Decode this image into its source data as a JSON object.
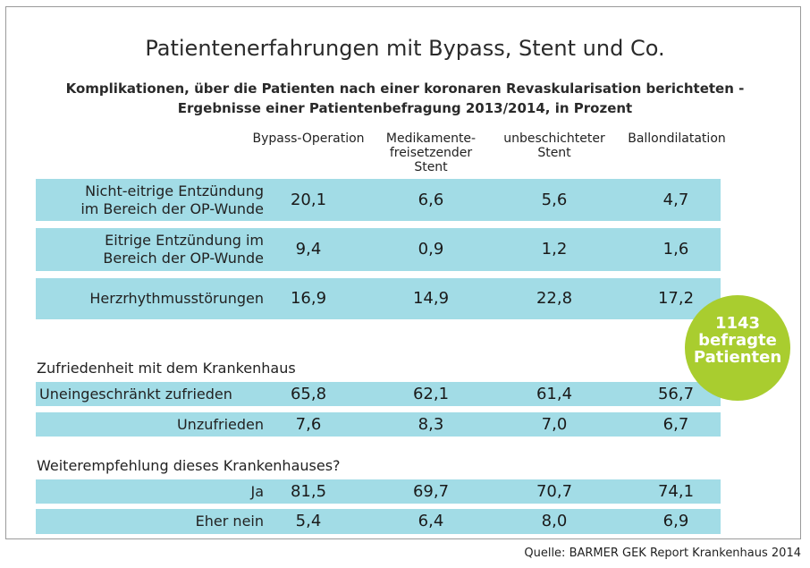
{
  "title": "Patientenerfahrungen mit Bypass, Stent und Co.",
  "subtitle_line1": "Komplikationen, über die Patienten nach einer koronaren Revaskularisation berichteten -",
  "subtitle_line2": "Ergebnisse einer Patientenbefragung 2013/2014, in Prozent",
  "columns": [
    {
      "lines": [
        "Bypass-Operation"
      ]
    },
    {
      "lines": [
        "Medikamente-",
        "freisetzender",
        "Stent"
      ]
    },
    {
      "lines": [
        "unbeschichteter",
        "Stent"
      ]
    },
    {
      "lines": [
        "Ballondilatation"
      ]
    }
  ],
  "sections": {
    "satisfaction": "Zufriedenheit mit dem Krankenhaus",
    "recommendation": "Weiterempfehlung dieses Krankenhauses?"
  },
  "badge": {
    "line1": "1143",
    "line2": "befragte",
    "line3": "Patienten"
  },
  "source": "Quelle: BARMER GEK Report Krankenhaus 2014",
  "colors": {
    "row_fill": "#a2dce6",
    "badge": "#a9cd2f"
  },
  "chart_data": {
    "type": "table",
    "title": "Patientenerfahrungen mit Bypass, Stent und Co.",
    "columns": [
      "Bypass-Operation",
      "Medikamente-freisetzender Stent",
      "unbeschichteter Stent",
      "Ballondilatation"
    ],
    "rows": [
      {
        "label_lines": [
          "Nicht-eitrige Entzündung",
          "im Bereich der OP-Wunde"
        ],
        "values": [
          "20,1",
          "6,6",
          "5,6",
          "4,7"
        ]
      },
      {
        "label_lines": [
          "Eitrige Entzündung im",
          "Bereich der OP-Wunde"
        ],
        "values": [
          "9,4",
          "0,9",
          "1,2",
          "1,6"
        ]
      },
      {
        "label_lines": [
          "Herzrhythmusstörungen"
        ],
        "values": [
          "16,9",
          "14,9",
          "22,8",
          "17,2"
        ]
      },
      {
        "label_lines": [
          "Uneingeschränkt zufrieden"
        ],
        "values": [
          "65,8",
          "62,1",
          "61,4",
          "56,7"
        ]
      },
      {
        "label_lines": [
          "Unzufrieden"
        ],
        "values": [
          "7,6",
          "8,3",
          "7,0",
          "6,7"
        ]
      },
      {
        "label_lines": [
          "Ja"
        ],
        "values": [
          "81,5",
          "69,7",
          "70,7",
          "74,1"
        ]
      },
      {
        "label_lines": [
          "Eher nein"
        ],
        "values": [
          "5,4",
          "6,4",
          "8,0",
          "6,9"
        ]
      }
    ]
  }
}
